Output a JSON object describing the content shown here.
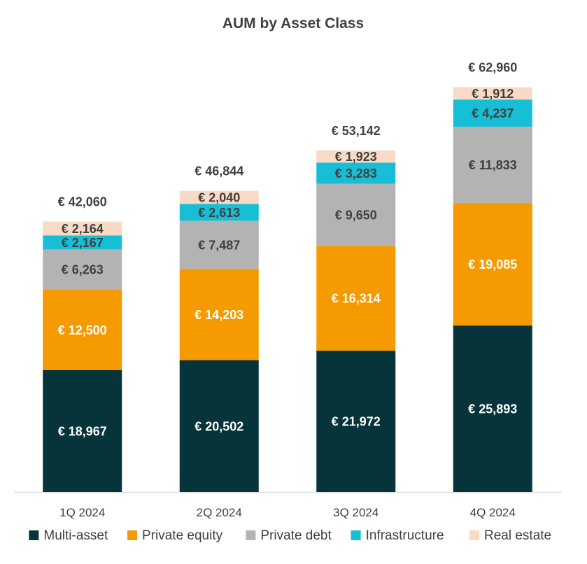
{
  "chart_data": {
    "type": "bar",
    "stacked": true,
    "title": "AUM by Asset Class",
    "categories": [
      "1Q 2024",
      "2Q 2024",
      "3Q 2024",
      "4Q 2024"
    ],
    "series": [
      {
        "name": "Multi-asset",
        "color": "#06343A",
        "label_color": "#FFFFFF",
        "values": [
          18967,
          20502,
          21972,
          25893
        ]
      },
      {
        "name": "Private equity",
        "color": "#F59A00",
        "label_color": "#FFFFFF",
        "values": [
          12500,
          14203,
          16314,
          19085
        ]
      },
      {
        "name": "Private debt",
        "color": "#B3B3B3",
        "label_color": "#404040",
        "values": [
          6263,
          7487,
          9650,
          11833
        ]
      },
      {
        "name": "Infrastructure",
        "color": "#16BFD6",
        "label_color": "#404040",
        "values": [
          2167,
          2613,
          3283,
          4237
        ]
      },
      {
        "name": "Real estate",
        "color": "#F9DAC4",
        "label_color": "#404040",
        "values": [
          2164,
          2040,
          1923,
          1912
        ]
      }
    ],
    "totals": [
      42060,
      46844,
      53142,
      62960
    ],
    "value_prefix": "€ ",
    "ylim": [
      0,
      70000
    ],
    "grid": false,
    "legend_position": "bottom"
  }
}
